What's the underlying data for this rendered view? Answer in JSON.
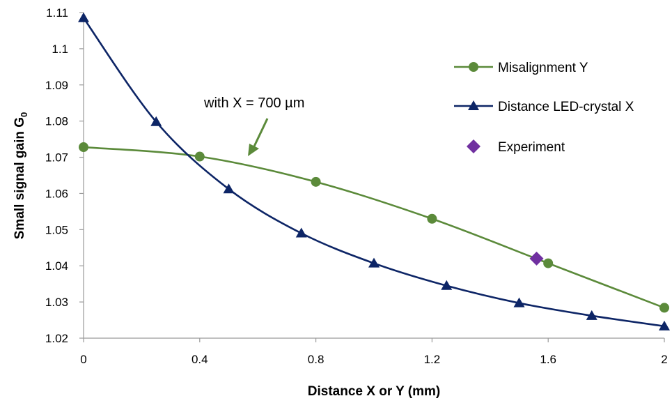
{
  "chart_data": {
    "type": "line",
    "xlabel": "Distance X or Y (mm)",
    "ylabel": "Small signal gain G",
    "ylabel_subscript": "0",
    "xlim": [
      0,
      2
    ],
    "ylim": [
      1.02,
      1.11
    ],
    "xticks": [
      "0",
      "0.4",
      "0.8",
      "1.2",
      "1.6",
      "2"
    ],
    "xtick_values": [
      0,
      0.4,
      0.8,
      1.2,
      1.6,
      2
    ],
    "yticks": [
      "1.02",
      "1.03",
      "1.04",
      "1.05",
      "1.06",
      "1.07",
      "1.08",
      "1.09",
      "1.1",
      "1.11"
    ],
    "ytick_values": [
      1.02,
      1.03,
      1.04,
      1.05,
      1.06,
      1.07,
      1.08,
      1.09,
      1.1,
      1.11
    ],
    "grid": false,
    "legend_position": "top-right",
    "series": [
      {
        "name": "Misalignment Y",
        "marker": "circle",
        "color": "#5B8A3A",
        "x": [
          0,
          0.4,
          0.8,
          1.2,
          1.6,
          2.0
        ],
        "y": [
          1.0728,
          1.0702,
          1.0632,
          1.053,
          1.0407,
          1.0284
        ]
      },
      {
        "name": "Distance LED-crystal X",
        "marker": "triangle",
        "color": "#0D2566",
        "x": [
          0,
          0.25,
          0.5,
          0.75,
          1.0,
          1.25,
          1.5,
          1.75,
          2.0
        ],
        "y": [
          1.1085,
          1.0798,
          1.0612,
          1.049,
          1.0407,
          1.0345,
          1.0297,
          1.0262,
          1.0233
        ]
      },
      {
        "name": "Experiment",
        "marker": "diamond",
        "color": "#7030A0",
        "x": [
          1.56
        ],
        "y": [
          1.042
        ]
      }
    ],
    "annotations": [
      {
        "text": "with X = 700 µm"
      }
    ]
  }
}
